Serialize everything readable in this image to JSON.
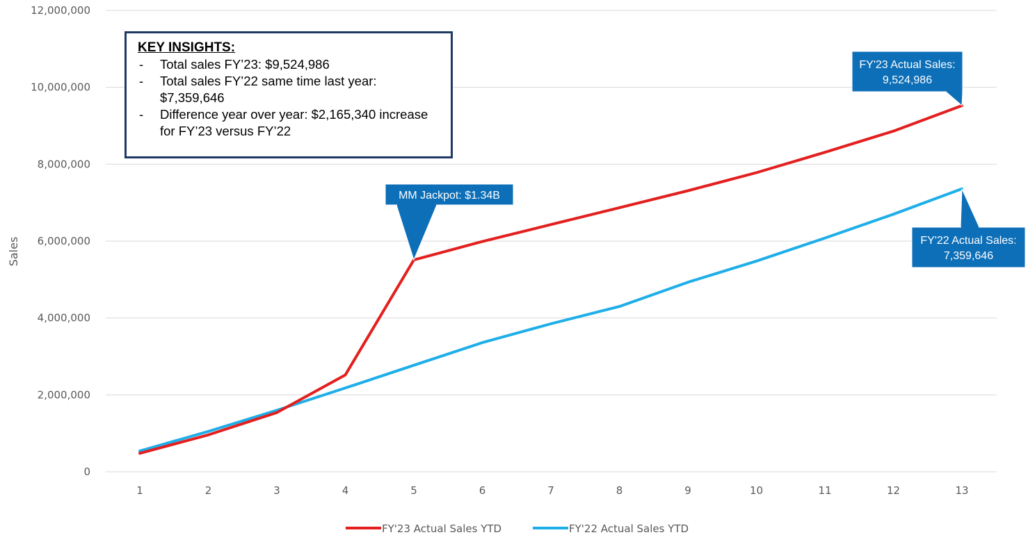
{
  "chart_data": {
    "type": "line",
    "x": [
      1,
      2,
      3,
      4,
      5,
      6,
      7,
      8,
      9,
      10,
      11,
      12,
      13
    ],
    "series": [
      {
        "name": "FY'23 Actual Sales YTD",
        "color": "#e31f1f",
        "values": [
          480000,
          960000,
          1540000,
          2520000,
          5510000,
          5990000,
          6430000,
          6870000,
          7310000,
          7780000,
          8310000,
          8860000,
          9524986
        ]
      },
      {
        "name": "FY'22 Actual Sales YTD",
        "color": "#1eaee8",
        "values": [
          540000,
          1050000,
          1600000,
          2180000,
          2770000,
          3360000,
          3850000,
          4300000,
          4930000,
          5480000,
          6080000,
          6700000,
          7359646
        ]
      }
    ],
    "ylabel": "Sales",
    "ylim": [
      0,
      12000000
    ],
    "yticks": [
      0,
      2000000,
      4000000,
      6000000,
      8000000,
      10000000,
      12000000
    ],
    "ytick_labels": [
      "0",
      "2,000,000",
      "4,000,000",
      "6,000,000",
      "8,000,000",
      "10,000,000",
      "12,000,000"
    ],
    "xtick_labels": [
      "1",
      "2",
      "3",
      "4",
      "5",
      "6",
      "7",
      "8",
      "9",
      "10",
      "11",
      "12",
      "13"
    ],
    "grid": true,
    "legend_position": "bottom",
    "annotations": [
      {
        "series": 0,
        "point": 4,
        "lines": [
          "MM Jackpot: $1.34B"
        ]
      },
      {
        "series": 0,
        "point": 12,
        "lines": [
          "FY'23 Actual Sales:",
          "9,524,986"
        ]
      },
      {
        "series": 1,
        "point": 12,
        "lines": [
          "FY'22 Actual Sales:",
          "7,359,646"
        ]
      }
    ],
    "callout_color": "#0c6fb8"
  },
  "insights": {
    "title": "KEY INSIGHTS:",
    "items": [
      "Total sales FY’23: $9,524,986",
      "Total sales FY’22 same time last year: $7,359,646",
      "Difference year over year: $2,165,340 increase for FY’23 versus FY’22"
    ],
    "bullet": "-"
  }
}
